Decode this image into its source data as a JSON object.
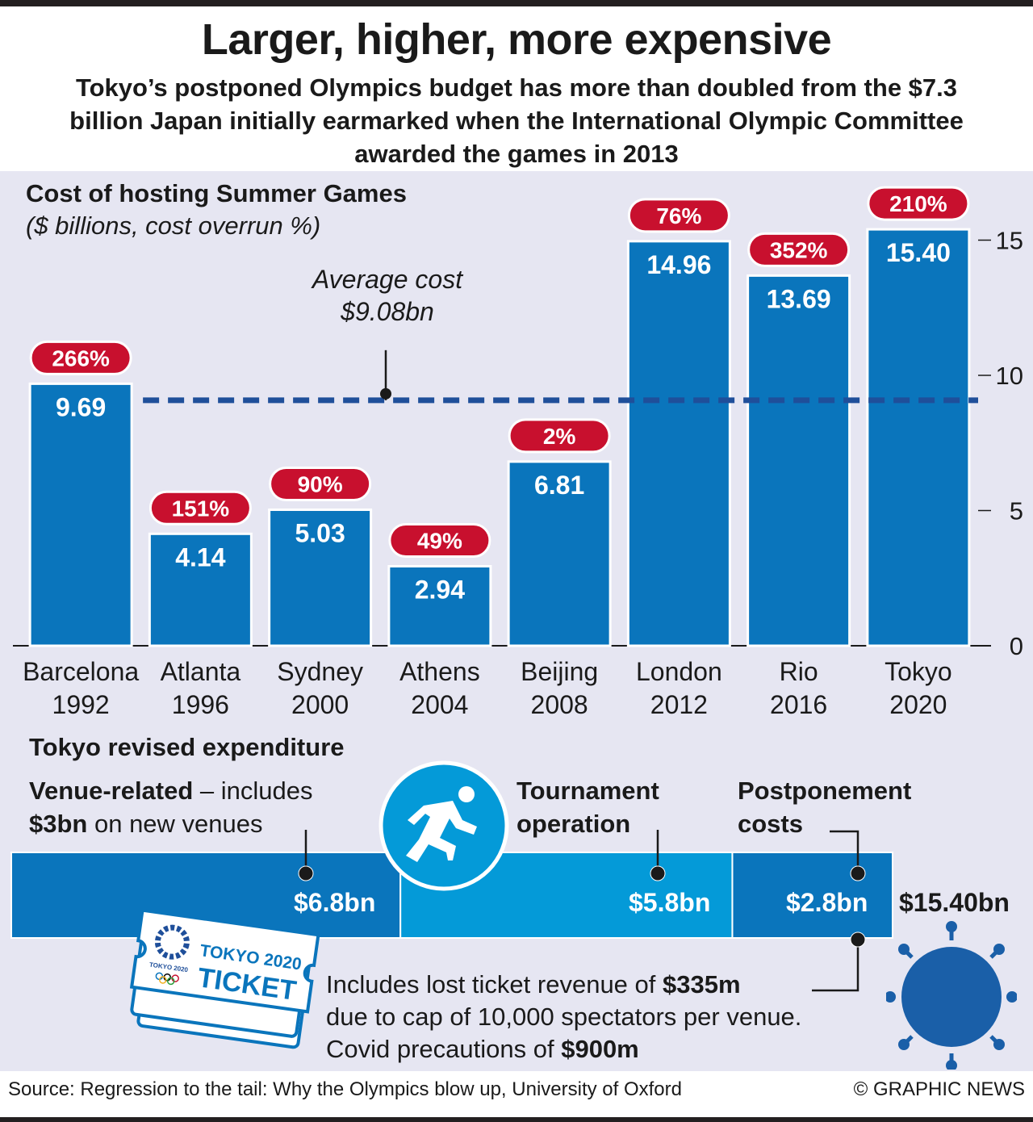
{
  "header": {
    "title": "Larger, higher, more expensive",
    "subtitle": "Tokyo’s postponed Olympics budget has more than doubled from the $7.3 billion Japan initially earmarked when the International Olympic Committee awarded the games in 2013"
  },
  "colors": {
    "bar": "#0a75bc",
    "bar_light": "#049ad8",
    "badge": "#c8102e",
    "panel": "#e6e6f2",
    "average_line": "#1f4f9a",
    "covid": "#1a5fa8"
  },
  "chart_data": {
    "type": "bar",
    "title": "Cost of hosting Summer Games",
    "subtitle": "($ billions, cost overrun %)",
    "categories": [
      {
        "city": "Barcelona",
        "year": "1992"
      },
      {
        "city": "Atlanta",
        "year": "1996"
      },
      {
        "city": "Sydney",
        "year": "2000"
      },
      {
        "city": "Athens",
        "year": "2004"
      },
      {
        "city": "Beijing",
        "year": "2008"
      },
      {
        "city": "London",
        "year": "2012"
      },
      {
        "city": "Rio",
        "year": "2016"
      },
      {
        "city": "Tokyo",
        "year": "2020"
      }
    ],
    "values": [
      9.69,
      4.14,
      5.03,
      2.94,
      6.81,
      14.96,
      13.69,
      15.4
    ],
    "value_labels": [
      "9.69",
      "4.14",
      "5.03",
      "2.94",
      "6.81",
      "14.96",
      "13.69",
      "15.40"
    ],
    "overruns": [
      "266%",
      "151%",
      "90%",
      "49%",
      "2%",
      "76%",
      "352%",
      "210%"
    ],
    "average": 9.08,
    "average_label": [
      "Average cost",
      "$9.08bn"
    ],
    "ylim": [
      0,
      16
    ],
    "yticks": [
      0,
      5,
      10,
      15
    ],
    "ytick_labels": [
      "0",
      "5",
      "10",
      "15"
    ],
    "y_axis_side": "right"
  },
  "expenditure": {
    "title": "Tokyo revised expenditure",
    "venue": {
      "bold1": "Venue-related",
      "text1": " – includes",
      "bold2": "$3bn",
      "text2": " on new venues"
    },
    "tournament": {
      "label1": "Tournament",
      "label2": "operation"
    },
    "postponement": {
      "label1": "Postponement",
      "label2": "costs"
    },
    "segments": [
      {
        "name": "Venue-related",
        "value": 6.8,
        "label": "$6.8bn"
      },
      {
        "name": "Tournament operation",
        "value": 5.8,
        "label": "$5.8bn"
      },
      {
        "name": "Postponement costs",
        "value": 2.8,
        "label": "$2.8bn"
      }
    ],
    "total_label": "$15.40bn",
    "note": {
      "line1_text": "Includes lost ticket revenue of ",
      "line1_bold": "$335m",
      "line2": "due to cap of 10,000 spectators per venue.",
      "line3_text": "Covid precautions of ",
      "line3_bold": "$900m"
    },
    "ticket": {
      "line1": "TOKYO 2020",
      "line2": "TICKET",
      "emblem_text": "TOKYO 2020"
    }
  },
  "footer": {
    "source": "Source: Regression to the tail: Why the Olympics blow up, University of Oxford",
    "credit": "© GRAPHIC NEWS"
  }
}
